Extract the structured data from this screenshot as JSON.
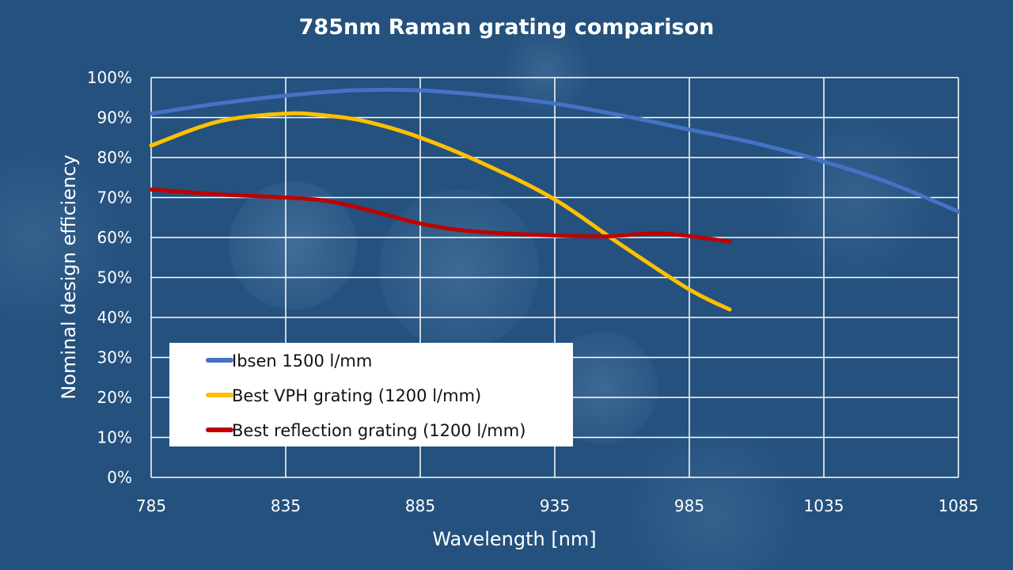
{
  "chart_data": {
    "type": "line",
    "title": "785nm Raman grating comparison",
    "xlabel": "Wavelength [nm]",
    "ylabel": "Nominal design efficiency",
    "xlim": [
      785,
      1085
    ],
    "ylim": [
      0,
      100
    ],
    "xticks": [
      785,
      835,
      885,
      935,
      985,
      1035,
      1085
    ],
    "yticks": [
      0,
      10,
      20,
      30,
      40,
      50,
      60,
      70,
      80,
      90,
      100
    ],
    "ytick_labels": [
      "0%",
      "10%",
      "20%",
      "30%",
      "40%",
      "50%",
      "60%",
      "70%",
      "80%",
      "90%",
      "100%"
    ],
    "grid": true,
    "legend_placement": "bottom-left",
    "series": [
      {
        "name": "Ibsen 1500 l/mm",
        "color": "#4472c4",
        "x": [
          785,
          810,
          835,
          860,
          885,
          910,
          935,
          960,
          985,
          1010,
          1035,
          1060,
          1085
        ],
        "y": [
          91,
          93.5,
          95.5,
          96.8,
          96.8,
          95.5,
          93.5,
          90.5,
          87,
          83.5,
          79,
          73.5,
          66.5
        ]
      },
      {
        "name": "Best VPH grating (1200 l/mm)",
        "color": "#ffc000",
        "x": [
          785,
          810,
          835,
          850,
          865,
          885,
          910,
          935,
          960,
          985,
          1000
        ],
        "y": [
          83,
          89,
          91,
          90.5,
          89,
          85,
          78,
          69.5,
          58,
          47,
          42
        ]
      },
      {
        "name": "Best reflection grating (1200 l/mm)",
        "color": "#c00000",
        "x": [
          785,
          810,
          835,
          850,
          865,
          885,
          905,
          935,
          955,
          975,
          1000
        ],
        "y": [
          72,
          70.8,
          70,
          69.2,
          67,
          63.5,
          61.5,
          60.5,
          60.3,
          61,
          59
        ]
      }
    ]
  }
}
